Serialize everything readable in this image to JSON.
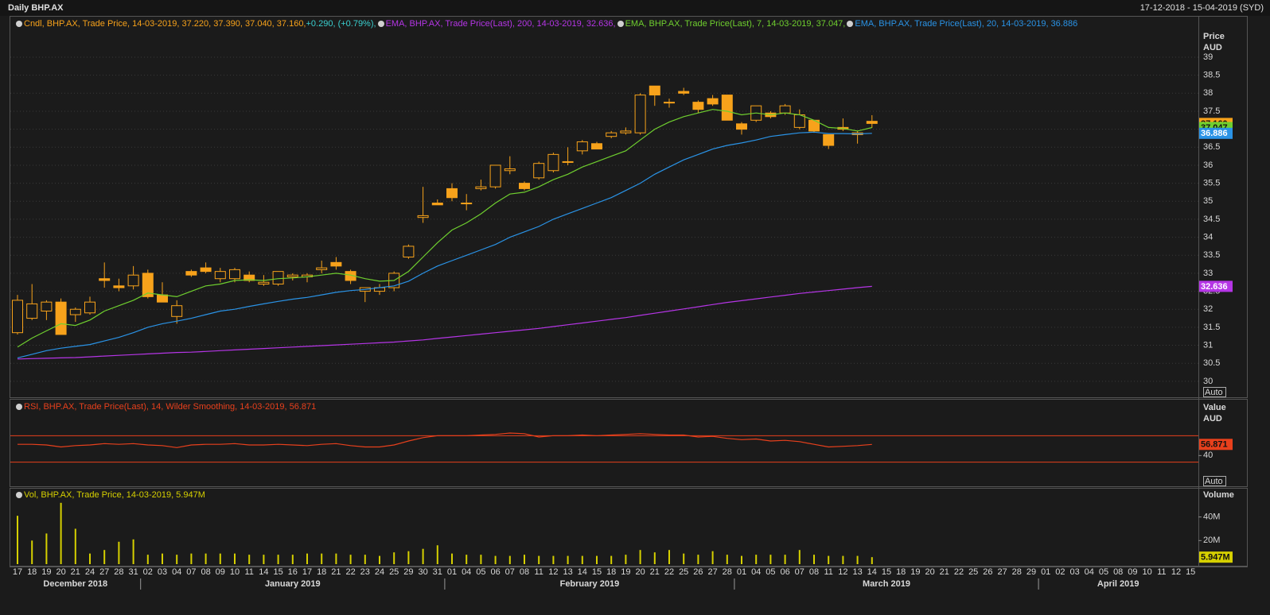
{
  "header": {
    "title": "Daily BHP.AX",
    "range": "17-12-2018 - 15-04-2019 (SYD)"
  },
  "chart_data": [
    {
      "type": "candlestick",
      "legend": "Cndl, BHP.AX, Trade Price, 14-03-2019, 37.220, 37.390, 37.040, 37.160,",
      "change": "+0.290, (+0.79%),",
      "color": "#f7a21b",
      "open": [
        31.35,
        31.75,
        31.95,
        32.2,
        31.85,
        31.9,
        32.85,
        32.65,
        32.65,
        33.0,
        32.4,
        31.8,
        33.05,
        33.15,
        32.85,
        32.85,
        32.95,
        32.7,
        32.7,
        32.9,
        32.9,
        33.1,
        33.3,
        33.05,
        32.5,
        32.5,
        32.6,
        33.45,
        34.55,
        34.95,
        35.35,
        34.95,
        35.35,
        35.4,
        35.85,
        35.5,
        35.65,
        35.85,
        36.1,
        36.4,
        36.6,
        36.8,
        36.9,
        36.9,
        38.2,
        37.75,
        38.05,
        37.75,
        37.85,
        37.95,
        37.15,
        37.25,
        37.45,
        37.45,
        37.05,
        37.25,
        36.85,
        37.05,
        36.85,
        37.22,
        null,
        null,
        null,
        null,
        null,
        null,
        null,
        null,
        null,
        null,
        null,
        null,
        null,
        null,
        null,
        null,
        null,
        null,
        null,
        null,
        null,
        null
      ],
      "high": [
        32.4,
        32.7,
        32.25,
        32.3,
        32.05,
        32.35,
        33.3,
        32.85,
        33.2,
        33.1,
        32.75,
        32.25,
        33.1,
        33.3,
        33.15,
        33.15,
        33.05,
        32.95,
        33.05,
        33.0,
        33.0,
        33.35,
        33.45,
        33.1,
        32.6,
        32.7,
        33.05,
        33.8,
        35.4,
        35.05,
        35.5,
        35.2,
        35.6,
        36.0,
        36.25,
        35.55,
        36.1,
        36.35,
        36.5,
        36.7,
        36.65,
        36.95,
        37.05,
        38.0,
        38.2,
        37.85,
        38.15,
        37.8,
        37.95,
        37.95,
        37.2,
        37.65,
        37.5,
        37.7,
        37.55,
        37.25,
        36.85,
        37.3,
        36.95,
        37.39,
        null,
        null,
        null,
        null,
        null,
        null,
        null,
        null,
        null,
        null,
        null,
        null,
        null,
        null,
        null,
        null,
        null,
        null,
        null,
        null,
        null,
        null
      ],
      "low": [
        31.3,
        31.7,
        31.7,
        31.3,
        31.65,
        31.85,
        32.6,
        32.5,
        32.55,
        32.3,
        32.2,
        31.6,
        32.9,
        33.0,
        32.75,
        32.75,
        32.75,
        32.65,
        32.65,
        32.8,
        32.75,
        33.0,
        33.1,
        32.7,
        32.2,
        32.4,
        32.5,
        33.4,
        34.4,
        34.9,
        35.0,
        34.75,
        35.3,
        35.35,
        35.75,
        35.3,
        35.6,
        35.8,
        36.0,
        36.3,
        36.45,
        36.75,
        36.85,
        36.85,
        37.65,
        37.6,
        37.95,
        37.45,
        37.65,
        37.25,
        36.85,
        37.2,
        37.3,
        37.4,
        37.0,
        36.9,
        36.45,
        36.95,
        36.6,
        37.04,
        null,
        null,
        null,
        null,
        null,
        null,
        null,
        null,
        null,
        null,
        null,
        null,
        null,
        null,
        null,
        null,
        null,
        null,
        null,
        null,
        null,
        null
      ],
      "close": [
        32.25,
        32.15,
        32.2,
        31.3,
        32.0,
        32.2,
        32.8,
        32.6,
        32.95,
        32.35,
        32.2,
        32.1,
        32.95,
        33.05,
        33.05,
        33.1,
        32.8,
        32.75,
        33.05,
        32.95,
        32.95,
        33.15,
        33.2,
        32.8,
        32.6,
        32.6,
        33.0,
        33.75,
        34.6,
        34.9,
        35.1,
        34.95,
        35.4,
        36.0,
        35.9,
        35.35,
        36.05,
        36.3,
        36.1,
        36.65,
        36.45,
        36.9,
        36.95,
        37.95,
        37.95,
        37.75,
        38.0,
        37.55,
        37.7,
        37.25,
        37.0,
        37.65,
        37.35,
        37.65,
        37.4,
        36.95,
        36.55,
        37.0,
        36.9,
        37.16,
        null,
        null,
        null,
        null,
        null,
        null,
        null,
        null,
        null,
        null,
        null,
        null,
        null,
        null,
        null,
        null,
        null,
        null,
        null,
        null,
        null,
        null
      ],
      "close_badge": "37.160",
      "series": [
        {
          "name": "EMA, BHP.AX, Trade Price(Last), 200, 14-03-2019, 32.636,",
          "color": "#b535e6",
          "badge": "32.636",
          "values": [
            30.62,
            30.63,
            30.64,
            30.65,
            30.66,
            30.68,
            30.7,
            30.72,
            30.74,
            30.76,
            30.78,
            30.8,
            30.81,
            30.83,
            30.85,
            30.87,
            30.89,
            30.91,
            30.93,
            30.95,
            30.97,
            30.99,
            31.01,
            31.03,
            31.05,
            31.07,
            31.09,
            31.12,
            31.15,
            31.19,
            31.23,
            31.27,
            31.31,
            31.35,
            31.39,
            31.43,
            31.47,
            31.52,
            31.57,
            31.62,
            31.67,
            31.72,
            31.77,
            31.83,
            31.89,
            31.95,
            32.01,
            32.07,
            32.13,
            32.19,
            32.24,
            32.29,
            32.34,
            32.39,
            32.44,
            32.48,
            32.52,
            32.56,
            32.6,
            32.636,
            null,
            null,
            null,
            null,
            null,
            null,
            null,
            null,
            null,
            null,
            null,
            null,
            null,
            null,
            null,
            null,
            null,
            null,
            null,
            null,
            null,
            null
          ]
        },
        {
          "name": "EMA, BHP.AX, Trade Price(Last), 7, 14-03-2019, 37.047,",
          "color": "#6fcf2f",
          "badge": "37.047",
          "values": [
            30.95,
            31.2,
            31.4,
            31.6,
            31.55,
            31.7,
            31.95,
            32.1,
            32.25,
            32.45,
            32.4,
            32.35,
            32.5,
            32.65,
            32.7,
            32.8,
            32.82,
            32.8,
            32.85,
            32.87,
            32.9,
            32.95,
            33.0,
            32.95,
            32.85,
            32.78,
            32.8,
            33.05,
            33.45,
            33.85,
            34.2,
            34.4,
            34.65,
            34.95,
            35.2,
            35.25,
            35.4,
            35.6,
            35.75,
            35.95,
            36.1,
            36.25,
            36.4,
            36.7,
            37.0,
            37.2,
            37.35,
            37.45,
            37.55,
            37.5,
            37.4,
            37.45,
            37.4,
            37.45,
            37.4,
            37.25,
            37.05,
            37.02,
            36.95,
            37.047,
            null,
            null,
            null,
            null,
            null,
            null,
            null,
            null,
            null,
            null,
            null,
            null,
            null,
            null,
            null,
            null,
            null,
            null,
            null,
            null,
            null,
            null
          ]
        },
        {
          "name": "EMA, BHP.AX, Trade Price(Last), 20, 14-03-2019, 36.886",
          "color": "#2a93e6",
          "badge": "36.886",
          "values": [
            30.65,
            30.75,
            30.85,
            30.92,
            30.97,
            31.02,
            31.12,
            31.22,
            31.35,
            31.5,
            31.6,
            31.67,
            31.75,
            31.85,
            31.95,
            32.0,
            32.08,
            32.15,
            32.22,
            32.28,
            32.33,
            32.4,
            32.47,
            32.52,
            32.55,
            32.6,
            32.65,
            32.78,
            33.0,
            33.2,
            33.35,
            33.5,
            33.65,
            33.8,
            34.0,
            34.15,
            34.3,
            34.5,
            34.65,
            34.8,
            34.95,
            35.1,
            35.3,
            35.5,
            35.75,
            35.95,
            36.15,
            36.3,
            36.45,
            36.55,
            36.62,
            36.7,
            36.8,
            36.85,
            36.9,
            36.92,
            36.88,
            36.88,
            36.87,
            36.886,
            null,
            null,
            null,
            null,
            null,
            null,
            null,
            null,
            null,
            null,
            null,
            null,
            null,
            null,
            null,
            null,
            null,
            null,
            null,
            null,
            null,
            null
          ]
        }
      ],
      "y_title": [
        "Price",
        "AUD"
      ],
      "ylim": [
        29.6,
        39.75
      ],
      "yticks": [
        30,
        30.5,
        31,
        31.5,
        32,
        32.5,
        33,
        33.5,
        34,
        34.5,
        35,
        35.5,
        36,
        36.5,
        37,
        37.5,
        38,
        38.5,
        39
      ],
      "grid": true,
      "auto": "Auto"
    },
    {
      "type": "line",
      "series": [
        {
          "name": "RSI, BHP.AX, Trade Price(Last), 14, Wilder Smoothing, 14-03-2019, 56.871",
          "color": "#e8401c",
          "badge": "56.871",
          "values": [
            57,
            57,
            56,
            53,
            55,
            56,
            58,
            57,
            58,
            56,
            55,
            52,
            56,
            57,
            57,
            58,
            56,
            56,
            57,
            56,
            55,
            57,
            58,
            55,
            53,
            53,
            56,
            62,
            67,
            70,
            70,
            70,
            71,
            72,
            74,
            73,
            68,
            70,
            70,
            71,
            70,
            71,
            72,
            73,
            72,
            71,
            71,
            68,
            69,
            66,
            64,
            65,
            62,
            63,
            61,
            57,
            53,
            54,
            55,
            56.871,
            null,
            null,
            null,
            null,
            null,
            null,
            null,
            null,
            null,
            null,
            null,
            null,
            null,
            null,
            null,
            null,
            null,
            null,
            null,
            null,
            null,
            null
          ]
        }
      ],
      "levels": [
        70,
        30
      ],
      "level_color": "#e8401c",
      "y_title": [
        "Value",
        "AUD"
      ],
      "ylim": [
        -4,
        122
      ],
      "yticks": [
        40
      ],
      "auto": "Auto"
    },
    {
      "type": "bar",
      "series": [
        {
          "name": "Vol, BHP.AX, Trade Price, 14-03-2019, 5.947M",
          "color": "#d6d000",
          "badge": "5.947M",
          "values": [
            41,
            20,
            26,
            52,
            30,
            9,
            12,
            19,
            21,
            8,
            9,
            8,
            9,
            9,
            9,
            9,
            8,
            8,
            8,
            8,
            9,
            9,
            9,
            8,
            8,
            7,
            10,
            11,
            13,
            16,
            9,
            8,
            8,
            7,
            7,
            8,
            7,
            7,
            7,
            7,
            7,
            7,
            8,
            12,
            10,
            12,
            9,
            8,
            11,
            8,
            7,
            8,
            8,
            8,
            12,
            8,
            7,
            7,
            7,
            5.947,
            null,
            null,
            null,
            null,
            null,
            null,
            null,
            null,
            null,
            null,
            null,
            null,
            null,
            null,
            null,
            null,
            null,
            null,
            null,
            null,
            null,
            null
          ]
        }
      ],
      "y_title": [
        "Volume"
      ],
      "ylim": [
        0,
        64
      ],
      "yticks": [
        {
          "value": 40,
          "label": "40M"
        },
        {
          "value": 20,
          "label": "20M"
        }
      ],
      "categories": [
        "17",
        "18",
        "19",
        "20",
        "21",
        "24",
        "27",
        "28",
        "31",
        "02",
        "03",
        "04",
        "07",
        "08",
        "09",
        "10",
        "11",
        "14",
        "15",
        "16",
        "17",
        "18",
        "21",
        "22",
        "23",
        "24",
        "25",
        "29",
        "30",
        "31",
        "01",
        "04",
        "05",
        "06",
        "07",
        "08",
        "11",
        "12",
        "13",
        "14",
        "15",
        "18",
        "19",
        "20",
        "21",
        "22",
        "25",
        "26",
        "27",
        "28",
        "01",
        "04",
        "05",
        "06",
        "07",
        "08",
        "11",
        "12",
        "13",
        "14",
        "15",
        "18",
        "19",
        "20",
        "21",
        "22",
        "25",
        "26",
        "27",
        "28",
        "29",
        "01",
        "02",
        "03",
        "04",
        "05",
        "08",
        "09",
        "10",
        "11",
        "12",
        "15"
      ],
      "months": [
        "December 2018",
        "January 2019",
        "February 2019",
        "March 2019",
        "April 2019"
      ]
    }
  ]
}
